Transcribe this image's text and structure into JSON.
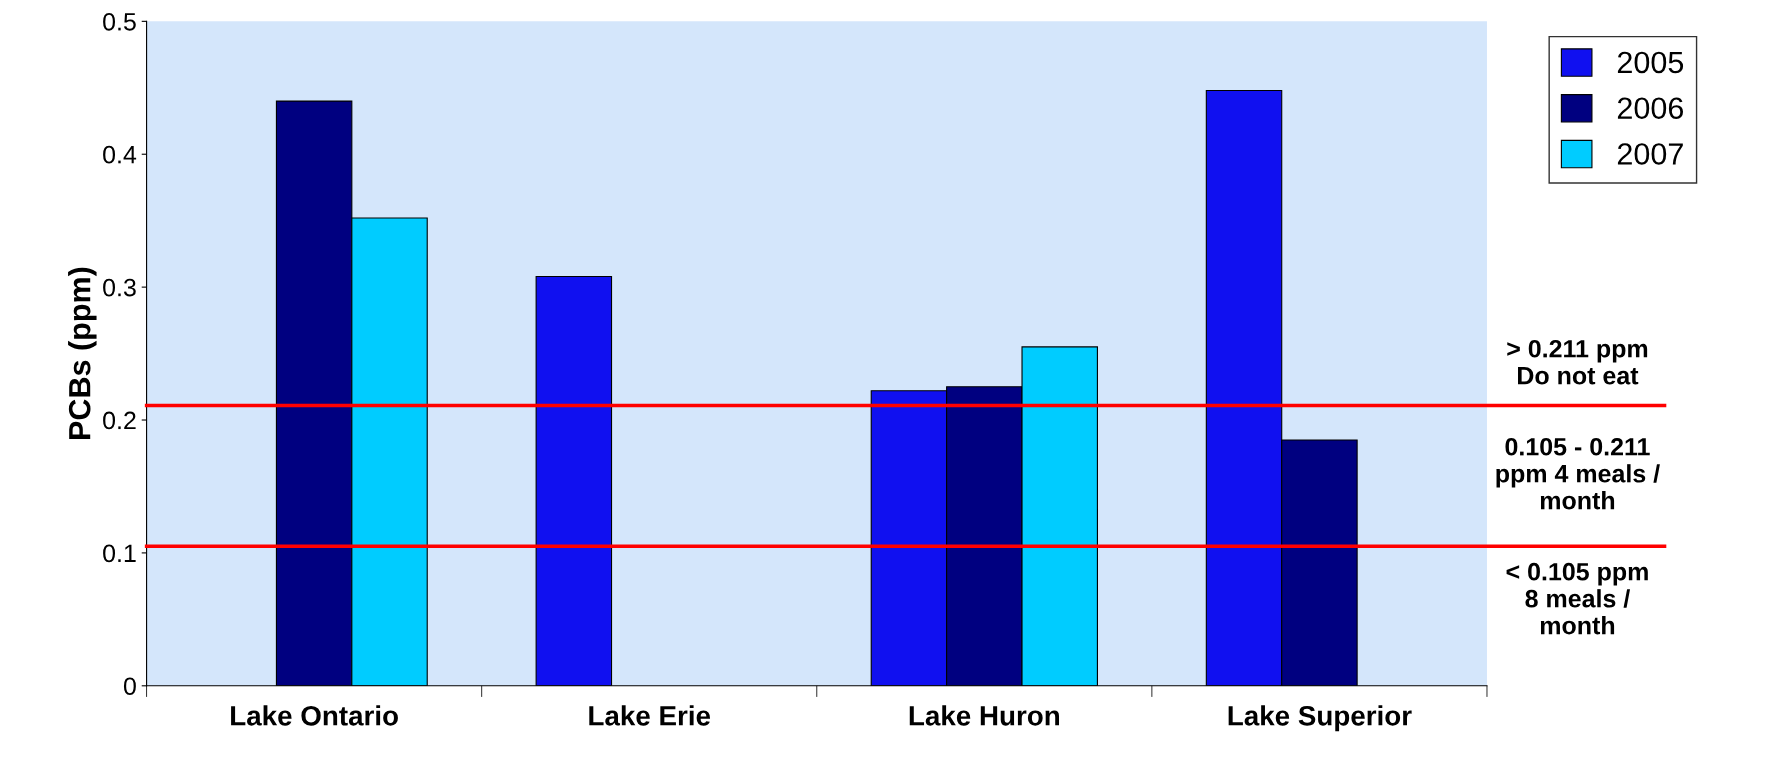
{
  "chart_data": {
    "type": "bar",
    "ylabel": "PCBs (ppm)",
    "categories": [
      "Lake Ontario",
      "Lake Erie",
      "Lake Huron",
      "Lake Superior"
    ],
    "series": [
      {
        "name": "2005",
        "color": "#1010f0",
        "values": [
          null,
          0.308,
          0.222,
          0.448
        ]
      },
      {
        "name": "2006",
        "color": "#000080",
        "values": [
          0.44,
          null,
          0.225,
          0.185
        ]
      },
      {
        "name": "2007",
        "color": "#00ccff",
        "values": [
          0.352,
          null,
          0.255,
          null
        ]
      }
    ],
    "ylim": [
      0,
      0.5
    ],
    "yticks": [
      0,
      0.1,
      0.2,
      0.3,
      0.4,
      0.5
    ],
    "ref_lines": [
      {
        "axis": "y",
        "value": 0.211,
        "label": "> 0.211 ppm\nDo not eat",
        "color": "#ff0000"
      },
      {
        "axis": "y",
        "value": 0.105,
        "label": "0.105 - 0.211\nppm 4 meals /\nmonth",
        "color": "#ff0000"
      }
    ],
    "annotations": [
      "< 0.105 ppm\n8 meals /\nmonth"
    ],
    "legend": "right",
    "grid": false
  }
}
